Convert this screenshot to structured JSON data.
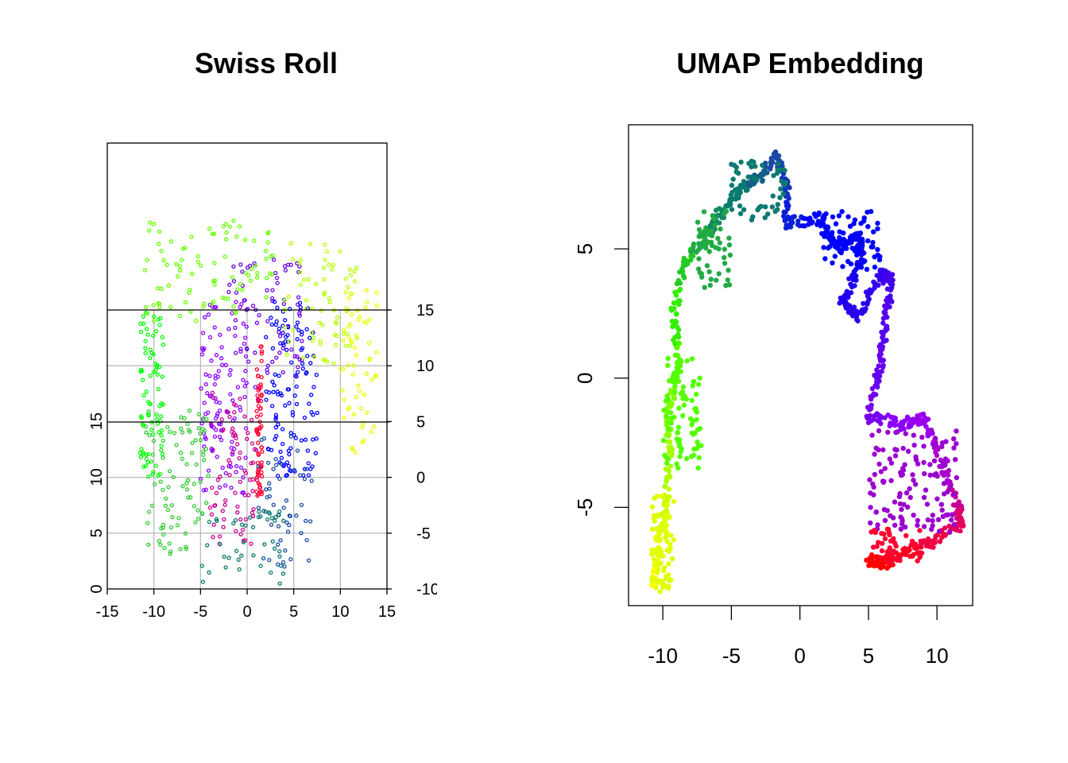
{
  "chart_data": [
    {
      "type": "scatter",
      "subtype": "scatterplot3d",
      "title": "Swiss Roll",
      "marker": "open-circle",
      "color_scale": [
        "#00ff00",
        "#33cc33",
        "#0b7a6f",
        "#1a4aa6",
        "#0000ff",
        "#8a00ff",
        "#c80090",
        "#ff0033",
        "#ff0000",
        "#ffff00",
        "#b5ff00"
      ],
      "x_ticks": [
        "-15",
        "-10",
        "-5",
        "0",
        "5",
        "10",
        "15"
      ],
      "y_ticks": [
        "-10",
        "-5",
        "0",
        "5",
        "10",
        "15"
      ],
      "z_ticks": [
        "0",
        "5",
        "10",
        "15"
      ],
      "xlim": [
        -15,
        15
      ],
      "ylim": [
        -10,
        15
      ],
      "zlim": [
        0,
        15
      ],
      "grid": true,
      "groups": [
        {
          "name": "",
          "color": "#ff0033",
          "x_range": [
            1.0,
            1.6
          ],
          "y_range": [
            -2,
            12
          ],
          "n": 70
        },
        {
          "name": "",
          "color": "#c80090",
          "x_range": [
            -4,
            1.2
          ],
          "y_range": [
            -6,
            8
          ],
          "n": 80
        },
        {
          "name": "",
          "color": "#8a00ff",
          "x_range": [
            -5,
            0
          ],
          "y_range": [
            -2,
            16
          ],
          "n": 110
        },
        {
          "name": "",
          "color": "#6a00e0",
          "x_range": [
            -2,
            6
          ],
          "y_range": [
            8,
            20
          ],
          "n": 70
        },
        {
          "name": "",
          "color": "#0000ff",
          "x_range": [
            2,
            7.6
          ],
          "y_range": [
            0,
            16
          ],
          "n": 120
        },
        {
          "name": "",
          "color": "#1a4aa6",
          "x_range": [
            1,
            7
          ],
          "y_range": [
            -8,
            4
          ],
          "n": 50
        },
        {
          "name": "",
          "color": "#0b7a6f",
          "x_range": [
            -5,
            4
          ],
          "y_range": [
            -11,
            -3
          ],
          "n": 60
        },
        {
          "name": "",
          "color": "#33cc33",
          "x_range": [
            -11,
            -4
          ],
          "y_range": [
            -7,
            6
          ],
          "n": 90
        },
        {
          "name": "",
          "color": "#00ff00",
          "x_range": [
            -11.5,
            -9
          ],
          "y_range": [
            0,
            15
          ],
          "n": 80
        },
        {
          "name": "",
          "color": "#66ff00",
          "x_range": [
            -11,
            3
          ],
          "y_range": [
            14,
            23
          ],
          "n": 90
        },
        {
          "name": "",
          "color": "#b5ff00",
          "x_range": [
            4,
            12
          ],
          "y_range": [
            10,
            21
          ],
          "n": 70
        },
        {
          "name": "",
          "color": "#e8ff00",
          "x_range": [
            10,
            14
          ],
          "y_range": [
            2,
            17
          ],
          "n": 60
        }
      ]
    },
    {
      "type": "scatter",
      "title": "UMAP Embedding",
      "marker": "filled-circle",
      "xlabel": "",
      "ylabel": "",
      "x_ticks": [
        "-10",
        "-5",
        "0",
        "5",
        "10"
      ],
      "y_ticks": [
        "-5",
        "0",
        "5"
      ],
      "xlim": [
        -12.5,
        12.6
      ],
      "ylim": [
        -8.8,
        9.8
      ],
      "grid": false,
      "path": [
        {
          "x": -10.6,
          "y": -8.2,
          "color": "#ffff00"
        },
        {
          "x": -10.4,
          "y": -6.2,
          "color": "#e8ff00"
        },
        {
          "x": -9.8,
          "y": -5.3,
          "color": "#ccff00"
        },
        {
          "x": -9.5,
          "y": -3.0,
          "color": "#aaff00"
        },
        {
          "x": -9.6,
          "y": -1.2,
          "color": "#80ff00"
        },
        {
          "x": -8.8,
          "y": 0.5,
          "color": "#55ff00"
        },
        {
          "x": -9.2,
          "y": 2.5,
          "color": "#33ee00"
        },
        {
          "x": -8.5,
          "y": 4.5,
          "color": "#22cc22"
        },
        {
          "x": -7.0,
          "y": 5.3,
          "color": "#22aa44"
        },
        {
          "x": -6.0,
          "y": 6.2,
          "color": "#118866"
        },
        {
          "x": -4.5,
          "y": 7.3,
          "color": "#0b7a6f"
        },
        {
          "x": -3.0,
          "y": 7.7,
          "color": "#125e88"
        },
        {
          "x": -1.8,
          "y": 8.6,
          "color": "#1a4aa6"
        },
        {
          "x": -0.9,
          "y": 7.5,
          "color": "#1030c0"
        },
        {
          "x": -1.0,
          "y": 6.0,
          "color": "#0a1fd8"
        },
        {
          "x": 1.5,
          "y": 6.2,
          "color": "#0000ff"
        },
        {
          "x": 2.8,
          "y": 5.0,
          "color": "#0000ff"
        },
        {
          "x": 4.3,
          "y": 5.5,
          "color": "#0000f0"
        },
        {
          "x": 4.6,
          "y": 4.5,
          "color": "#1100ee"
        },
        {
          "x": 3.0,
          "y": 3.0,
          "color": "#2200ee"
        },
        {
          "x": 4.3,
          "y": 2.3,
          "color": "#2a00ee"
        },
        {
          "x": 5.8,
          "y": 4.0,
          "color": "#3300ee"
        },
        {
          "x": 6.7,
          "y": 3.8,
          "color": "#4400ee"
        },
        {
          "x": 6.2,
          "y": 2.0,
          "color": "#5500ee"
        },
        {
          "x": 5.8,
          "y": 0.3,
          "color": "#6600ee"
        },
        {
          "x": 5.0,
          "y": -1.5,
          "color": "#7700ee"
        },
        {
          "x": 7.5,
          "y": -1.8,
          "color": "#8a00ff"
        },
        {
          "x": 9.0,
          "y": -1.5,
          "color": "#9a00ee"
        },
        {
          "x": 10.5,
          "y": -3.5,
          "color": "#aa00cc"
        },
        {
          "x": 11.5,
          "y": -5.0,
          "color": "#c80090"
        },
        {
          "x": 11.8,
          "y": -5.6,
          "color": "#e40060"
        },
        {
          "x": 9.5,
          "y": -6.4,
          "color": "#f00040"
        },
        {
          "x": 7.5,
          "y": -6.8,
          "color": "#ff0020"
        },
        {
          "x": 6.0,
          "y": -7.2,
          "color": "#ff0000"
        },
        {
          "x": 5.0,
          "y": -7.0,
          "color": "#ff0000"
        }
      ],
      "fill_regions": [
        {
          "x_range": [
            -10.8,
            -9.2
          ],
          "y_range": [
            -8.3,
            -4.5
          ],
          "color": "#e0ff00",
          "n": 70
        },
        {
          "x_range": [
            -10.0,
            -7.2
          ],
          "y_range": [
            -3.5,
            0.8
          ],
          "color": "#55ff00",
          "n": 80
        },
        {
          "x_range": [
            -7.5,
            -5.0
          ],
          "y_range": [
            3.5,
            6.5
          ],
          "color": "#22aa44",
          "n": 50
        },
        {
          "x_range": [
            -5.0,
            -1.0
          ],
          "y_range": [
            6.0,
            8.5
          ],
          "color": "#0b7a6f",
          "n": 50
        },
        {
          "x_range": [
            1.5,
            6.0
          ],
          "y_range": [
            4.2,
            6.5
          ],
          "color": "#0000ff",
          "n": 60
        },
        {
          "x_range": [
            5.0,
            11.5
          ],
          "y_range": [
            -6.0,
            -2.0
          ],
          "color": "#9a00d0",
          "n": 130
        },
        {
          "x_range": [
            5.0,
            9.0
          ],
          "y_range": [
            -7.2,
            -5.8
          ],
          "color": "#ff0030",
          "n": 40
        }
      ]
    }
  ]
}
